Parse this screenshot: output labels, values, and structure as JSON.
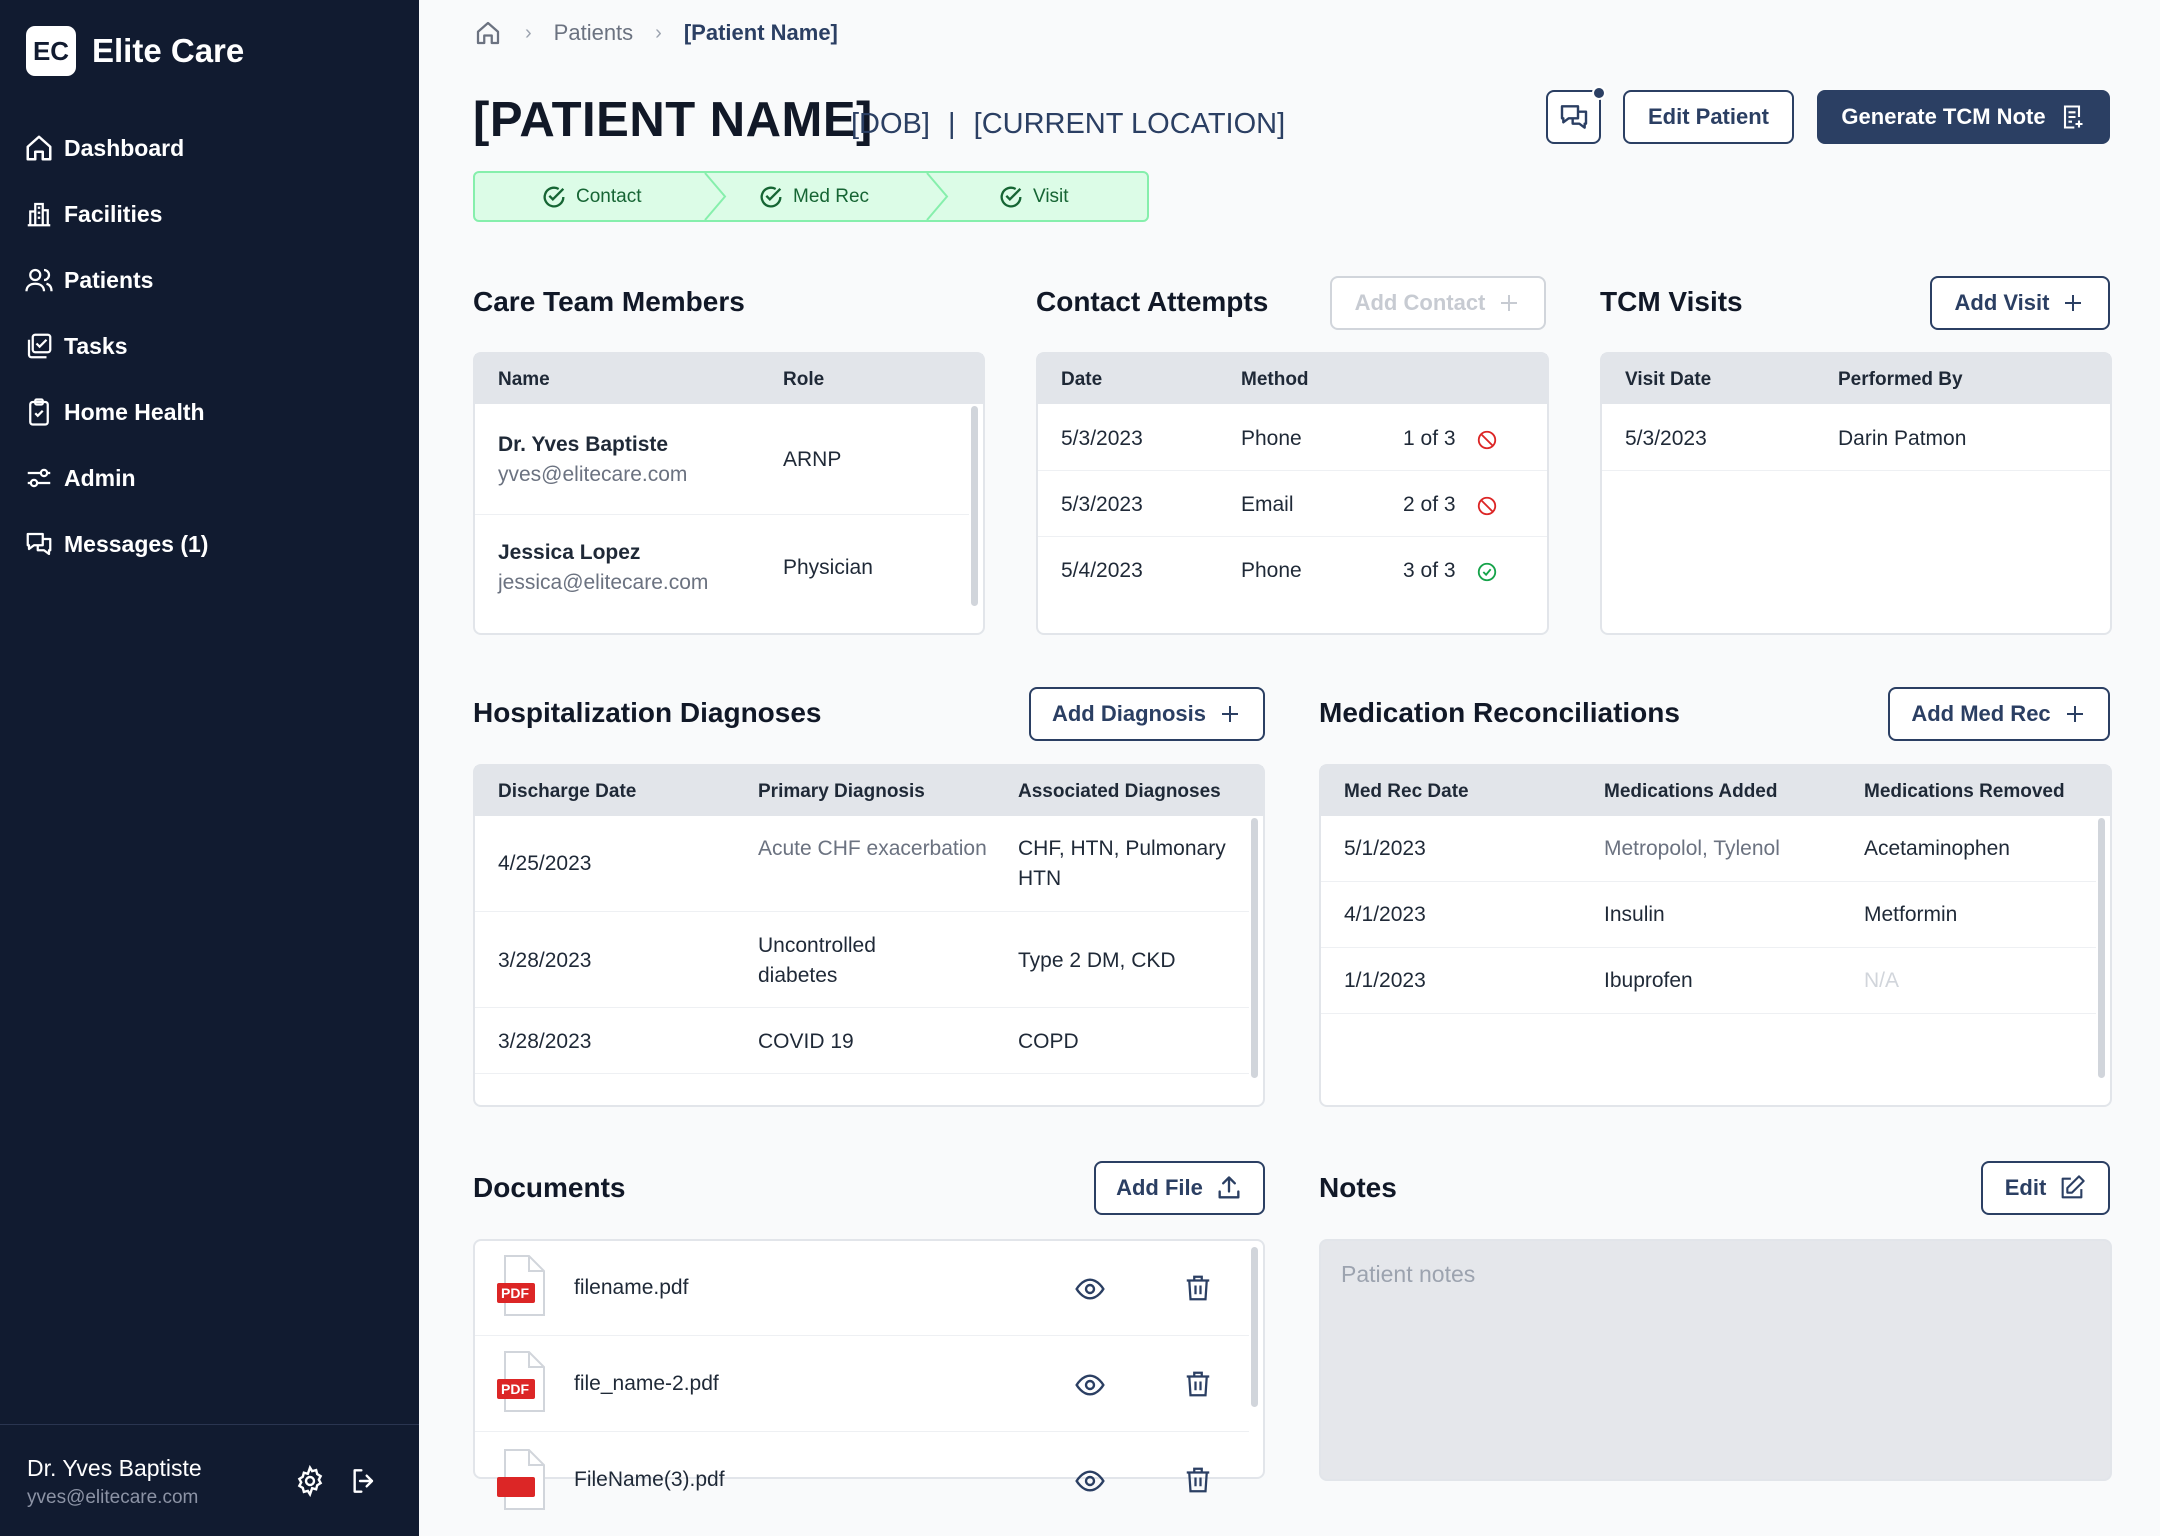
{
  "app": {
    "logo_abbr": "EC",
    "name": "Elite Care"
  },
  "sidebar": {
    "items": [
      {
        "label": "Dashboard",
        "icon": "home-icon"
      },
      {
        "label": "Facilities",
        "icon": "building-icon"
      },
      {
        "label": "Patients",
        "icon": "users-icon"
      },
      {
        "label": "Tasks",
        "icon": "tasks-icon"
      },
      {
        "label": "Home Health",
        "icon": "clipboard-icon"
      },
      {
        "label": "Admin",
        "icon": "sliders-icon"
      },
      {
        "label": "Messages (1)",
        "icon": "messages-icon"
      }
    ],
    "user": {
      "name": "Dr. Yves Baptiste",
      "email": "yves@elitecare.com"
    }
  },
  "breadcrumb": {
    "items": [
      "Patients",
      "[Patient Name]"
    ]
  },
  "header": {
    "patient_name": "[PATIENT NAME]",
    "dob": "[DOB]",
    "separator": "|",
    "location": "[CURRENT LOCATION]",
    "edit_label": "Edit Patient",
    "generate_label": "Generate TCM Note"
  },
  "progress": {
    "steps": [
      {
        "label": "Contact",
        "done": true
      },
      {
        "label": "Med Rec",
        "done": true
      },
      {
        "label": "Visit",
        "done": true
      }
    ]
  },
  "care_team": {
    "title": "Care Team Members",
    "columns": [
      "Name",
      "Role"
    ],
    "rows": [
      {
        "name": "Dr. Yves Baptiste",
        "email": "yves@elitecare.com",
        "role": "ARNP"
      },
      {
        "name": "Jessica Lopez",
        "email": "jessica@elitecare.com",
        "role": "Physician"
      }
    ]
  },
  "contact_attempts": {
    "title": "Contact Attempts",
    "add_label": "Add Contact",
    "columns": [
      "Date",
      "Method"
    ],
    "rows": [
      {
        "date": "5/3/2023",
        "method": "Phone",
        "attempt": "1 of 3",
        "status": "failed"
      },
      {
        "date": "5/3/2023",
        "method": "Email",
        "attempt": "2 of 3",
        "status": "failed"
      },
      {
        "date": "5/4/2023",
        "method": "Phone",
        "attempt": "3 of 3",
        "status": "success"
      }
    ]
  },
  "tcm_visits": {
    "title": "TCM Visits",
    "add_label": "Add Visit",
    "columns": [
      "Visit Date",
      "Performed By"
    ],
    "rows": [
      {
        "date": "5/3/2023",
        "by": "Darin Patmon"
      }
    ]
  },
  "diagnoses": {
    "title": "Hospitalization Diagnoses",
    "add_label": "Add Diagnosis",
    "columns": [
      "Discharge Date",
      "Primary Diagnosis",
      "Associated Diagnoses"
    ],
    "rows": [
      {
        "date": "4/25/2023",
        "primary": "Acute CHF exacerbation",
        "associated": "CHF, HTN, Pulmonary HTN"
      },
      {
        "date": "3/28/2023",
        "primary": "Uncontrolled diabetes",
        "associated": "Type 2 DM, CKD"
      },
      {
        "date": "3/28/2023",
        "primary": "COVID 19",
        "associated": "COPD"
      }
    ]
  },
  "med_recs": {
    "title": "Medication Reconciliations",
    "add_label": "Add Med Rec",
    "columns": [
      "Med Rec Date",
      "Medications Added",
      "Medications Removed"
    ],
    "rows": [
      {
        "date": "5/1/2023",
        "added": "Metropolol, Tylenol",
        "removed": "Acetaminophen"
      },
      {
        "date": "4/1/2023",
        "added": "Insulin",
        "removed": "Metformin"
      },
      {
        "date": "1/1/2023",
        "added": "Ibuprofen",
        "removed": "N/A"
      }
    ]
  },
  "documents": {
    "title": "Documents",
    "add_label": "Add File",
    "file_badge": "PDF",
    "files": [
      "filename.pdf",
      "file_name-2.pdf",
      "FileName(3).pdf"
    ]
  },
  "notes": {
    "title": "Notes",
    "edit_label": "Edit",
    "placeholder": "Patient notes"
  },
  "colors": {
    "sidebar": "#111b30",
    "primary": "#2b3f63",
    "success": "#16a34a",
    "danger": "#dc2626",
    "step_bg": "#dcfce7"
  }
}
